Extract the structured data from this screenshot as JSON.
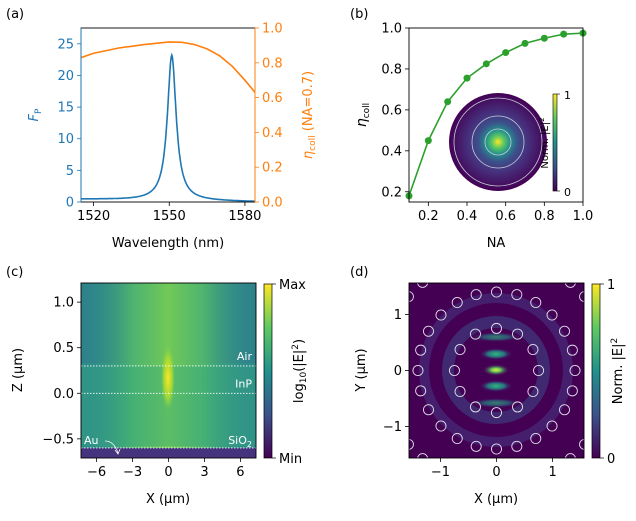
{
  "colors": {
    "blue": "#1f77b4",
    "orange": "#ff7f0e",
    "green": "#2ca02c",
    "viridis_low": "#440154",
    "viridis_high": "#fde725"
  },
  "chart_data": [
    {
      "panel": "(a)",
      "type": "line",
      "xlabel": "Wavelength (nm)",
      "xlim": [
        1515,
        1584
      ],
      "xticks": [
        1520,
        1550,
        1580
      ],
      "ylabel": "F",
      "ylabel_sub": "P",
      "ylim": [
        0,
        27.5
      ],
      "yticks": [
        0,
        5,
        10,
        15,
        20,
        25
      ],
      "y2label": "η",
      "y2label_sub": "coll",
      "y2label_suffix": " (NA=0.7)",
      "y2lim": [
        0,
        1
      ],
      "y2ticks": [
        "0.0",
        "0.2",
        "0.4",
        "0.6",
        "0.8",
        "1.0"
      ],
      "series": [
        {
          "axis": "left",
          "color": "#1f77b4",
          "peak_wavelength": 1551,
          "peak_value": 23,
          "fwhm_nm": 4.2,
          "baseline": 0.1,
          "x": [
            1515,
            1525,
            1535,
            1540,
            1545,
            1548,
            1550,
            1551,
            1552,
            1554,
            1557,
            1562,
            1570,
            1584
          ],
          "y": [
            0.5,
            0.8,
            1.6,
            2.6,
            6.0,
            13.5,
            21.5,
            23.0,
            21.0,
            12.0,
            5.0,
            2.0,
            0.7,
            0.1
          ]
        },
        {
          "axis": "right",
          "color": "#ff7f0e",
          "x": [
            1515,
            1520,
            1530,
            1540,
            1550,
            1555,
            1560,
            1565,
            1570,
            1575,
            1580,
            1584
          ],
          "y": [
            0.83,
            0.855,
            0.885,
            0.905,
            0.92,
            0.918,
            0.905,
            0.88,
            0.84,
            0.78,
            0.7,
            0.63
          ]
        }
      ]
    },
    {
      "panel": "(b)",
      "type": "line",
      "xlabel": "NA",
      "xlim": [
        0.1,
        1.0
      ],
      "xticks": [
        "0.2",
        "0.4",
        "0.6",
        "0.8",
        "1.0"
      ],
      "ylabel": "η",
      "ylabel_sub": "coll",
      "ylim": [
        0.15,
        1.0
      ],
      "yticks": [
        "0.2",
        "0.4",
        "0.6",
        "0.8",
        "1.0"
      ],
      "series": [
        {
          "color": "#2ca02c",
          "marker": "circle",
          "x": [
            0.1,
            0.2,
            0.3,
            0.4,
            0.5,
            0.6,
            0.7,
            0.8,
            0.9,
            1.0
          ],
          "y": [
            0.18,
            0.45,
            0.64,
            0.755,
            0.825,
            0.88,
            0.925,
            0.95,
            0.97,
            0.975
          ]
        }
      ],
      "inset": {
        "type": "heatmap",
        "colorbar_label": "Norm. |E|",
        "colorbar_sup": "2",
        "colorbar_ticks": [
          "0",
          "1"
        ],
        "colormap": "viridis"
      }
    },
    {
      "panel": "(c)",
      "type": "heatmap",
      "colormap": "viridis",
      "xlabel": "X (µm)",
      "xlim": [
        -7.3,
        7.3
      ],
      "xticks": [
        "−6",
        "−3",
        "0",
        "3",
        "6"
      ],
      "ylabel": "Z (µm)",
      "ylim": [
        -0.71,
        1.21
      ],
      "yticks": [
        "−0.5",
        "0.0",
        "0.5",
        "1.0"
      ],
      "colorbar_label": "log",
      "colorbar_label_sub": "10",
      "colorbar_label_rest": "(|E|",
      "colorbar_sup": "2",
      "colorbar_close": ")",
      "colorbar_ticks": [
        "Min",
        "Max"
      ],
      "interfaces": [
        {
          "z": 0.3,
          "label": "Air"
        },
        {
          "z": 0.0,
          "label": "InP"
        },
        {
          "z": -0.6,
          "label": "SiO",
          "sub": "2"
        }
      ],
      "annotation": "Au"
    },
    {
      "panel": "(d)",
      "type": "heatmap",
      "colormap": "viridis",
      "xlabel": "X (µm)",
      "xlim": [
        -1.56,
        1.56
      ],
      "xticks": [
        "−1",
        "0",
        "1"
      ],
      "ylabel": "Y (µm)",
      "ylim": [
        -1.56,
        1.56
      ],
      "yticks": [
        "−1",
        "0",
        "1"
      ],
      "colorbar_label": "Norm. |E|",
      "colorbar_sup": "2",
      "colorbar_ticks": [
        "0",
        "1"
      ],
      "hole_rings": [
        {
          "radius": 0.75,
          "count": 12
        },
        {
          "radius": 1.4,
          "count": 24
        },
        {
          "radius": 2.05,
          "count": 36
        }
      ],
      "hole_radius": 0.09
    }
  ]
}
